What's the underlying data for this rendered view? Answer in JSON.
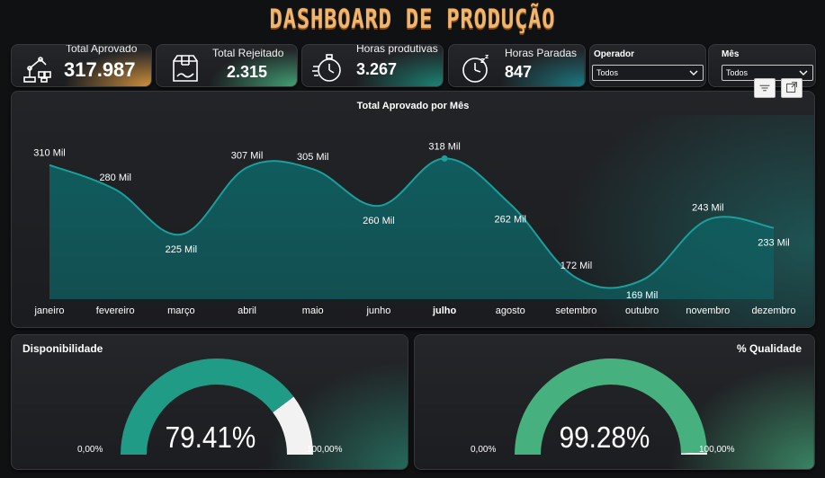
{
  "title": "DASHBOARD DE PRODUÇÃO",
  "kpis": [
    {
      "label": "Total Aprovado",
      "value": "317.987",
      "icon": "robot-arm-icon",
      "accent": "#c98a3a"
    },
    {
      "label": "Total Rejeitado",
      "value": "2.315",
      "icon": "open-box-icon",
      "accent": "#3aa37a"
    },
    {
      "label": "Horas produtivas",
      "value": "3.267",
      "icon": "stopwatch-icon",
      "accent": "#1b8a7a"
    },
    {
      "label": "Horas Paradas",
      "value": "847",
      "icon": "clock-sleep-icon",
      "accent": "#1b7f88"
    }
  ],
  "slicers": {
    "operador": {
      "label": "Operador",
      "value": "Todos"
    },
    "mes": {
      "label": "Mês",
      "value": "Todos"
    }
  },
  "colors": {
    "teal_line": "#1c9e9a",
    "teal_fill": "#0f5f61",
    "gauge1": "#1f9b86",
    "gauge2": "#46b07f",
    "gauge_bg": "#f2f2f2",
    "title": "#f1b56d"
  },
  "chart_data": {
    "type": "area",
    "title": "Total Aprovado por Mês",
    "categories": [
      "janeiro",
      "fevereiro",
      "março",
      "abril",
      "maio",
      "junho",
      "julho",
      "agosto",
      "setembro",
      "outubro",
      "novembro",
      "dezembro"
    ],
    "values": [
      310,
      280,
      225,
      307,
      305,
      260,
      318,
      262,
      172,
      169,
      243,
      233
    ],
    "data_labels": [
      "310 Mil",
      "280 Mil",
      "225 Mil",
      "307 Mil",
      "305 Mil",
      "260 Mil",
      "318 Mil",
      "262 Mil",
      "172 Mil",
      "169 Mil",
      "243 Mil",
      "233 Mil"
    ],
    "highlighted_category": "julho",
    "unit": "Mil",
    "grid": false,
    "legend": "none"
  },
  "gauges": [
    {
      "title": "Disponibilidade",
      "value": 79.41,
      "value_label": "79.41%",
      "min_label": "0,00%",
      "max_label": "100,00%"
    },
    {
      "title": "% Qualidade",
      "value": 99.28,
      "value_label": "99.28%",
      "min_label": "0,00%",
      "max_label": "100,00%"
    }
  ]
}
